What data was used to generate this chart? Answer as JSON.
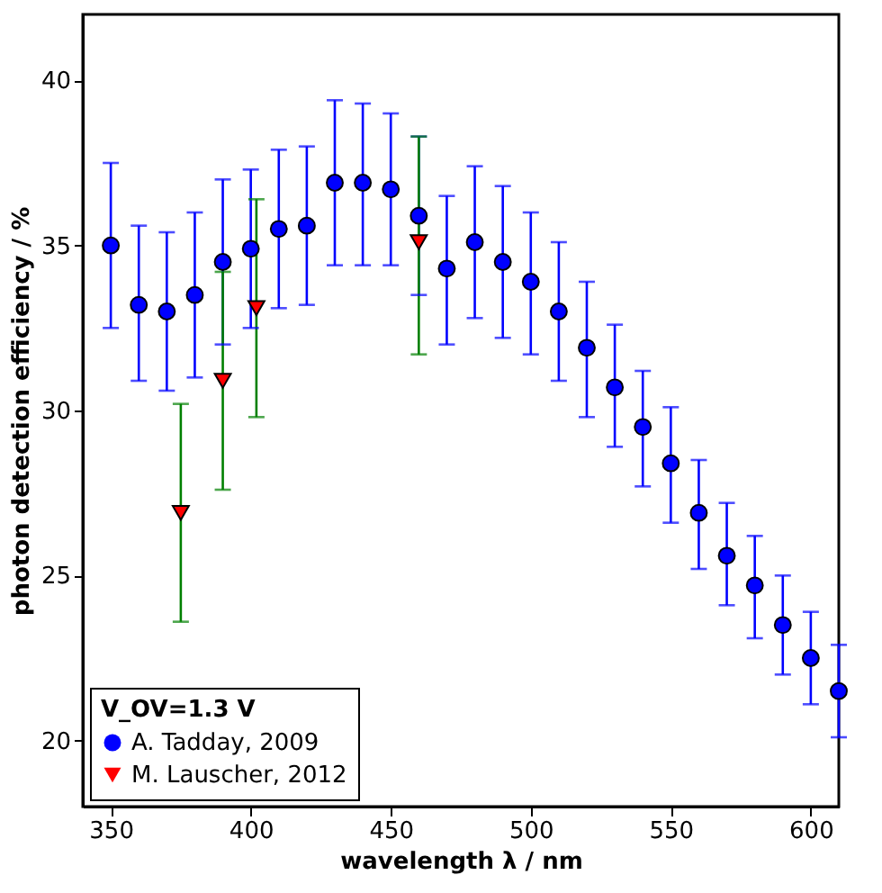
{
  "chart_data": {
    "type": "scatter",
    "xlabel": "wavelength λ / nm",
    "ylabel": "photon detection efficiency / %",
    "legend_title": "V_OV=1.3 V",
    "xlim": [
      340,
      610
    ],
    "ylim": [
      18,
      42
    ],
    "xticks": [
      350,
      400,
      450,
      500,
      550,
      600
    ],
    "yticks": [
      20,
      25,
      30,
      35,
      40
    ],
    "grid": false,
    "legend": "bottom left",
    "series": [
      {
        "name": "A. Tadday, 2009",
        "color": "#0000ff",
        "marker": "circle",
        "x": [
          350,
          360,
          370,
          380,
          390,
          400,
          410,
          420,
          430,
          440,
          450,
          460,
          470,
          480,
          490,
          500,
          510,
          520,
          530,
          540,
          550,
          560,
          570,
          580,
          590,
          600,
          610
        ],
        "values": [
          35.0,
          33.2,
          33.0,
          33.5,
          34.5,
          34.9,
          35.5,
          35.6,
          36.9,
          36.9,
          36.7,
          35.9,
          34.3,
          35.1,
          34.5,
          33.9,
          33.0,
          31.9,
          30.7,
          29.5,
          28.4,
          26.9,
          25.6,
          24.7,
          23.5,
          22.5,
          21.5
        ],
        "errors": [
          [
            32.5,
            37.5
          ],
          [
            30.9,
            35.6
          ],
          [
            30.6,
            35.4
          ],
          [
            31.0,
            36.0
          ],
          [
            32.0,
            37.0
          ],
          [
            32.5,
            37.3
          ],
          [
            33.1,
            37.9
          ],
          [
            33.2,
            38.0
          ],
          [
            34.4,
            39.4
          ],
          [
            34.4,
            39.3
          ],
          [
            34.4,
            39.0
          ],
          [
            33.5,
            38.3
          ],
          [
            32.0,
            36.5
          ],
          [
            32.8,
            37.4
          ],
          [
            32.2,
            36.8
          ],
          [
            31.7,
            36.0
          ],
          [
            30.9,
            35.1
          ],
          [
            29.8,
            33.9
          ],
          [
            28.9,
            32.6
          ],
          [
            27.7,
            31.2
          ],
          [
            26.6,
            30.1
          ],
          [
            25.2,
            28.5
          ],
          [
            24.1,
            27.2
          ],
          [
            23.1,
            26.2
          ],
          [
            22.0,
            25.0
          ],
          [
            21.1,
            23.9
          ],
          [
            20.1,
            22.9
          ]
        ]
      },
      {
        "name": "M. Lauscher, 2012",
        "color": "#ff0000",
        "marker": "triangle",
        "x": [
          375,
          390,
          402,
          460
        ],
        "values": [
          26.9,
          30.9,
          33.1,
          35.1
        ],
        "errors": [
          [
            23.6,
            30.2
          ],
          [
            27.6,
            34.2
          ],
          [
            29.8,
            36.4
          ],
          [
            31.7,
            38.3
          ]
        ]
      }
    ]
  }
}
